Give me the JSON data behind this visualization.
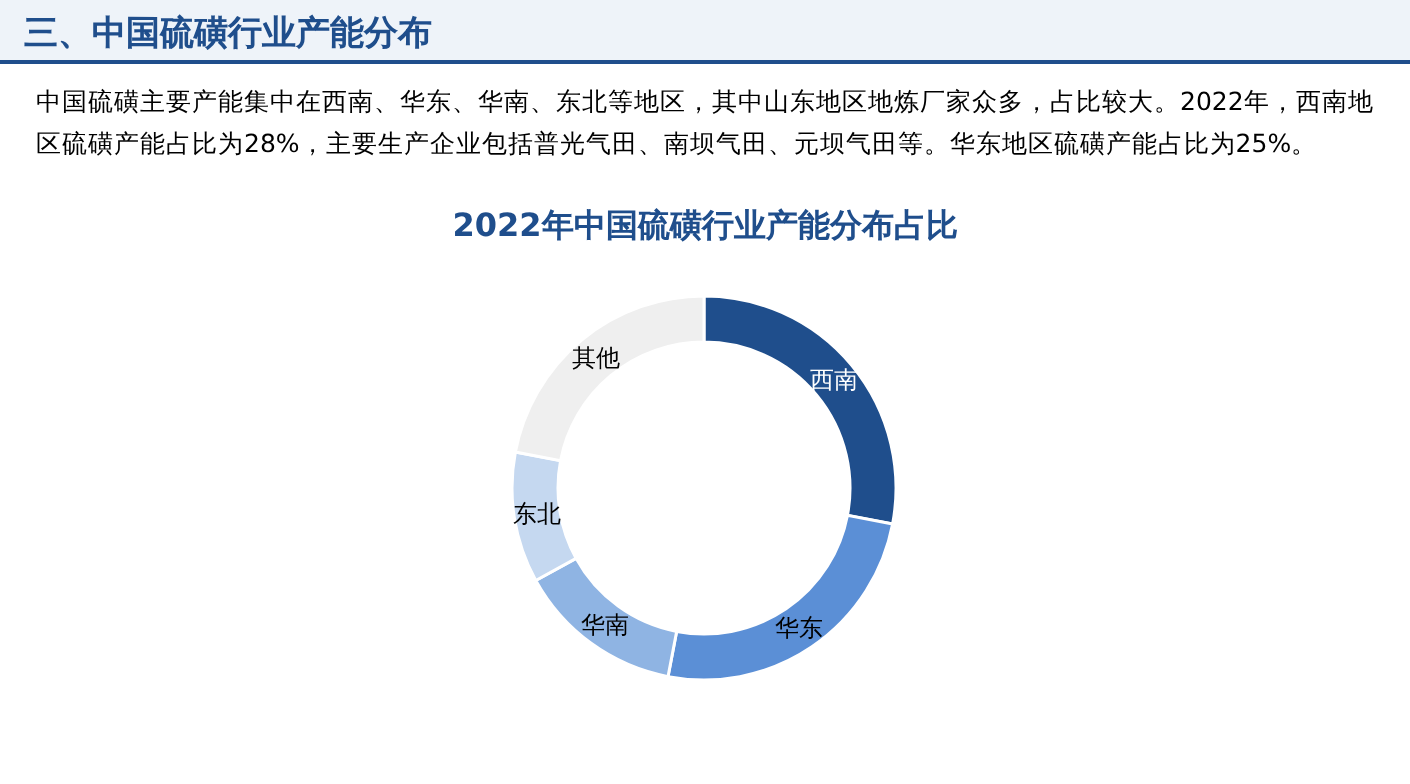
{
  "chart_data": {
    "type": "donut",
    "title": "2022年中国硫磺行业产能分布占比",
    "categories": [
      "西南",
      "华东",
      "华南",
      "东北",
      "其他"
    ],
    "values": [
      28,
      25,
      14,
      11,
      22
    ],
    "colors": [
      "#1f4e8c",
      "#5b8fd6",
      "#8fb4e3",
      "#c5d8f0",
      "#efefef"
    ],
    "annotations": [
      "三、中国硫磺行业产能分布",
      "中国硫磺主要产能集中在西南、华东、华南、东北等地区，其中山东地区地炼厂家众多，占比较大。2022年，西南地区硫磺产能占比为28%，主要生产企业包括普光气田、南坝气田、元坝气田等。华东地区硫磺产能占比为25%。"
    ]
  }
}
